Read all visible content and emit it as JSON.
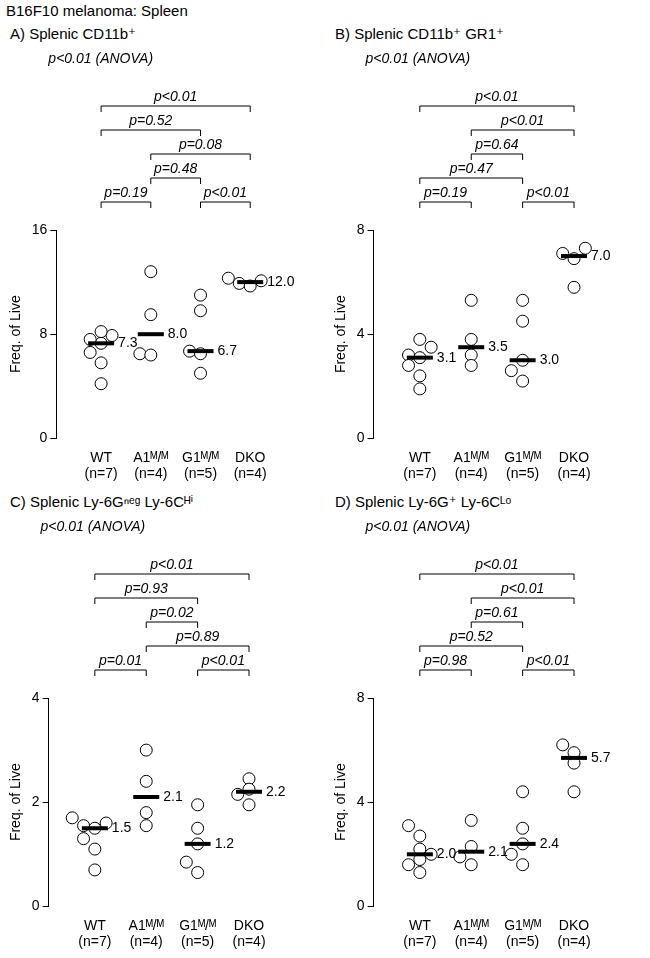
{
  "title": "B16F10 melanoma: Spleen",
  "chart_data": [
    {
      "type": "scatter",
      "title": "A) Splenic CD11b⁺",
      "annotation": "p<0.01 (ANOVA)",
      "y_label": "Freq. of Live",
      "categories": [
        "WT",
        "A1ᴹ/ᴹ",
        "G1ᴹ/ᴹ",
        "DKO"
      ],
      "n_labels": [
        "(n=7)",
        "(n=4)",
        "(n=5)",
        "(n=4)"
      ],
      "values": [
        [
          4.2,
          5.8,
          6.6,
          7.3,
          7.6,
          7.9,
          8.2
        ],
        [
          12.8,
          9.5,
          6.5,
          6.4
        ],
        [
          11.0,
          9.8,
          6.7,
          6.5,
          5.0
        ],
        [
          12.3,
          12.1,
          11.9,
          11.7
        ]
      ],
      "medians": [
        7.3,
        8.0,
        6.7,
        12.0
      ],
      "median_labels": [
        "7.3",
        "8.0",
        "6.7",
        "12.0"
      ],
      "comparisons": [
        {
          "groups": [
            "WT",
            "A1ᴹ/ᴹ"
          ],
          "label": "p=0.19"
        },
        {
          "groups": [
            "G1ᴹ/ᴹ",
            "DKO"
          ],
          "label": "p<0.01"
        },
        {
          "groups": [
            "A1ᴹ/ᴹ",
            "G1ᴹ/ᴹ"
          ],
          "label": "p=0.48"
        },
        {
          "groups": [
            "A1ᴹ/ᴹ",
            "DKO"
          ],
          "label": "p=0.08"
        },
        {
          "groups": [
            "WT",
            "G1ᴹ/ᴹ"
          ],
          "label": "p=0.52"
        },
        {
          "groups": [
            "WT",
            "DKO"
          ],
          "label": "p<0.01"
        }
      ],
      "ylim": [
        0,
        16
      ],
      "yticks": [
        0,
        8,
        16
      ],
      "grid": false,
      "marker": "circle"
    },
    {
      "type": "scatter",
      "title": "B) Splenic CD11b⁺ GR1⁺",
      "annotation": "p<0.01 (ANOVA)",
      "y_label": "Freq. of Live",
      "categories": [
        "WT",
        "A1ᴹ/ᴹ",
        "G1ᴹ/ᴹ",
        "DKO"
      ],
      "n_labels": [
        "(n=7)",
        "(n=4)",
        "(n=5)",
        "(n=4)"
      ],
      "values": [
        [
          3.8,
          3.5,
          3.2,
          3.1,
          2.8,
          2.4,
          1.9
        ],
        [
          5.3,
          3.8,
          3.2,
          2.8
        ],
        [
          5.3,
          4.5,
          3.0,
          2.6,
          2.2
        ],
        [
          7.3,
          7.1,
          6.9,
          5.8
        ]
      ],
      "medians": [
        3.1,
        3.5,
        3.0,
        7.0
      ],
      "median_labels": [
        "3.1",
        "3.5",
        "3.0",
        "7.0"
      ],
      "comparisons": [
        {
          "groups": [
            "WT",
            "A1ᴹ/ᴹ"
          ],
          "label": "p=0.19"
        },
        {
          "groups": [
            "G1ᴹ/ᴹ",
            "DKO"
          ],
          "label": "p<0.01"
        },
        {
          "groups": [
            "WT",
            "G1ᴹ/ᴹ"
          ],
          "label": "p=0.47"
        },
        {
          "groups": [
            "A1ᴹ/ᴹ",
            "G1ᴹ/ᴹ"
          ],
          "label": "p=0.64"
        },
        {
          "groups": [
            "A1ᴹ/ᴹ",
            "DKO"
          ],
          "label": "p<0.01"
        },
        {
          "groups": [
            "WT",
            "DKO"
          ],
          "label": "p<0.01"
        }
      ],
      "ylim": [
        0,
        8
      ],
      "yticks": [
        0,
        4,
        8
      ],
      "grid": false,
      "marker": "circle"
    },
    {
      "type": "scatter",
      "title": "C) Splenic Ly-6Gⁿᵉᵍ Ly-6Cᴴⁱ",
      "annotation": "p<0.01 (ANOVA)",
      "y_label": "Freq. of Live",
      "categories": [
        "WT",
        "A1ᴹ/ᴹ",
        "G1ᴹ/ᴹ",
        "DKO"
      ],
      "n_labels": [
        "(n=7)",
        "(n=4)",
        "(n=5)",
        "(n=4)"
      ],
      "values": [
        [
          1.7,
          1.6,
          1.55,
          1.5,
          1.3,
          1.1,
          0.7
        ],
        [
          3.0,
          2.4,
          1.8,
          1.55
        ],
        [
          1.95,
          1.5,
          1.2,
          0.85,
          0.65
        ],
        [
          2.45,
          2.25,
          2.15,
          1.95
        ]
      ],
      "medians": [
        1.5,
        2.1,
        1.2,
        2.2
      ],
      "median_labels": [
        "1.5",
        "2.1",
        "1.2",
        "2.2"
      ],
      "comparisons": [
        {
          "groups": [
            "G1ᴹ/ᴹ",
            "DKO"
          ],
          "label": "p<0.01"
        },
        {
          "groups": [
            "WT",
            "A1ᴹ/ᴹ"
          ],
          "label": "p=0.01"
        },
        {
          "groups": [
            "A1ᴹ/ᴹ",
            "DKO"
          ],
          "label": "p=0.89"
        },
        {
          "groups": [
            "A1ᴹ/ᴹ",
            "G1ᴹ/ᴹ"
          ],
          "label": "p=0.02"
        },
        {
          "groups": [
            "WT",
            "G1ᴹ/ᴹ"
          ],
          "label": "p=0.93"
        },
        {
          "groups": [
            "WT",
            "DKO"
          ],
          "label": "p<0.01"
        }
      ],
      "ylim": [
        0,
        4
      ],
      "yticks": [
        0,
        2,
        4
      ],
      "grid": false,
      "marker": "circle"
    },
    {
      "type": "scatter",
      "title": "D) Splenic Ly-6G⁺ Ly-6Cᴸᵒ",
      "annotation": "p<0.01 (ANOVA)",
      "y_label": "Freq. of Live",
      "categories": [
        "WT",
        "A1ᴹ/ᴹ",
        "G1ᴹ/ᴹ",
        "DKO"
      ],
      "n_labels": [
        "(n=7)",
        "(n=4)",
        "(n=5)",
        "(n=4)"
      ],
      "values": [
        [
          3.1,
          2.7,
          2.2,
          2.0,
          1.8,
          1.6,
          1.3
        ],
        [
          3.3,
          2.3,
          1.9,
          1.6
        ],
        [
          4.4,
          3.0,
          2.4,
          2.0,
          1.6
        ],
        [
          6.2,
          5.9,
          5.5,
          4.4
        ]
      ],
      "medians": [
        2.0,
        2.1,
        2.4,
        5.7
      ],
      "median_labels": [
        "2.0",
        "2.1",
        "2.4",
        "5.7"
      ],
      "comparisons": [
        {
          "groups": [
            "WT",
            "A1ᴹ/ᴹ"
          ],
          "label": "p=0.98"
        },
        {
          "groups": [
            "G1ᴹ/ᴹ",
            "DKO"
          ],
          "label": "p<0.01"
        },
        {
          "groups": [
            "WT",
            "G1ᴹ/ᴹ"
          ],
          "label": "p=0.52"
        },
        {
          "groups": [
            "A1ᴹ/ᴹ",
            "G1ᴹ/ᴹ"
          ],
          "label": "p=0.61"
        },
        {
          "groups": [
            "A1ᴹ/ᴹ",
            "DKO"
          ],
          "label": "p<0.01"
        },
        {
          "groups": [
            "WT",
            "DKO"
          ],
          "label": "p<0.01"
        }
      ],
      "ylim": [
        0,
        8
      ],
      "yticks": [
        0,
        4,
        8
      ],
      "grid": false,
      "marker": "circle"
    }
  ]
}
